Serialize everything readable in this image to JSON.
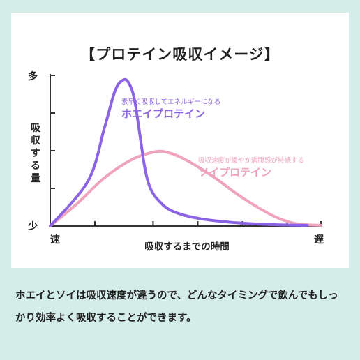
{
  "chart_data": {
    "type": "line",
    "title": "【プロテイン吸収イメージ】",
    "ylabel": "吸収する量",
    "xlabel": "吸収するまでの時間",
    "y_top_label": "多",
    "y_bottom_label": "少",
    "x_left_label": "速",
    "x_right_label": "遅",
    "ylim": [
      0,
      100
    ],
    "xlim": [
      0,
      100
    ],
    "series": [
      {
        "name": "ホエイプロテイン",
        "description": "素早く吸収してエネルギーになる",
        "color": "#8b63e6",
        "x": [
          0,
          14,
          20,
          24,
          27,
          29,
          31,
          33,
          35,
          37,
          40,
          45,
          55,
          70,
          85,
          95
        ],
        "values": [
          0,
          30,
          65,
          90,
          97,
          95,
          85,
          62,
          38,
          25,
          17,
          10,
          5,
          2,
          0.8,
          0.5
        ]
      },
      {
        "name": "ソイプロテイン",
        "description": "吸収速度が緩やか満腹感が持続する",
        "color": "#f0a3bb",
        "x": [
          0,
          10,
          20,
          30,
          38,
          43,
          50,
          60,
          70,
          80,
          86,
          92,
          100
        ],
        "values": [
          0,
          15,
          32,
          44,
          49,
          49,
          44,
          33,
          20,
          9,
          4,
          1.2,
          0.5
        ]
      }
    ]
  },
  "caption": "ホエイとソイは吸収速度が違うので、どんなタイミングで飲んでもしっかり効率よく吸収することができます。",
  "colors": {
    "background": "#d5ede9",
    "panel": "#ffffff",
    "axis": "#333333"
  }
}
